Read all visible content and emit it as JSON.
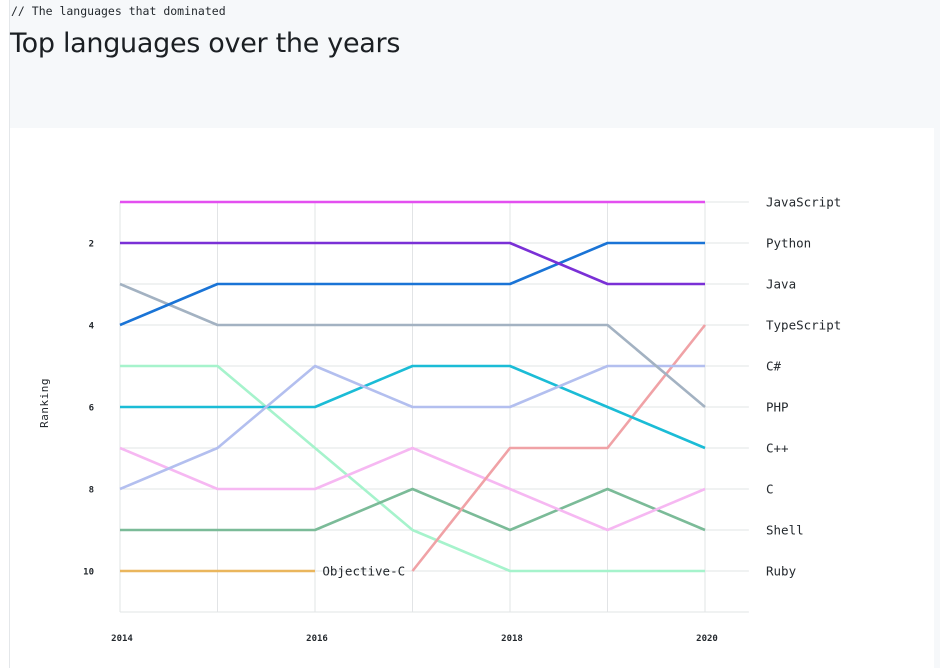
{
  "header": {
    "kicker": "// The languages that dominated",
    "title": "Top languages over the years"
  },
  "chart_data": {
    "type": "line",
    "subtype": "bump",
    "title": "Top languages over the years",
    "ylabel": "Ranking",
    "xlabel": "",
    "x": [
      2014,
      2015,
      2016,
      2017,
      2018,
      2019,
      2020
    ],
    "xlim": [
      2014,
      2020.45
    ],
    "ylim": [
      1,
      11
    ],
    "y_inverted": true,
    "x_tick_labels": [
      "2014",
      "2016",
      "2018",
      "2020"
    ],
    "x_tick_values": [
      2014,
      2016,
      2018,
      2020
    ],
    "y_tick_labels": [
      "2",
      "4",
      "6",
      "8",
      "10"
    ],
    "y_tick_values": [
      2,
      4,
      6,
      8,
      10
    ],
    "grid": true,
    "series": [
      {
        "name": "JavaScript",
        "color": "#e34ff0",
        "x": [
          2014,
          2015,
          2016,
          2017,
          2018,
          2019,
          2020
        ],
        "values": [
          1,
          1,
          1,
          1,
          1,
          1,
          1
        ]
      },
      {
        "name": "Python",
        "color": "#7a30d6",
        "x": [
          2014,
          2015,
          2016,
          2017,
          2018,
          2019,
          2020
        ],
        "values": [
          2,
          2,
          2,
          2,
          2,
          3,
          3
        ]
      },
      {
        "name": "Java",
        "color": "#1a74d6",
        "x": [
          2014,
          2015,
          2016,
          2017,
          2018,
          2019,
          2020
        ],
        "values": [
          4,
          3,
          3,
          3,
          3,
          2,
          2
        ]
      },
      {
        "name": "TypeScript",
        "color": "#a3b2c2",
        "x": [
          2014,
          2015,
          2016,
          2017,
          2018,
          2019,
          2020
        ],
        "values": [
          3,
          4,
          4,
          4,
          4,
          4,
          6
        ]
      },
      {
        "name": "C#",
        "color": "#b3bfef",
        "x": [
          2014,
          2015,
          2016,
          2017,
          2018,
          2019,
          2020
        ],
        "values": [
          8,
          7,
          5,
          6,
          6,
          5,
          5
        ]
      },
      {
        "name": "PHP",
        "color": "#1bbcd6",
        "x": [
          2014,
          2015,
          2016,
          2017,
          2018,
          2019,
          2020
        ],
        "values": [
          6,
          6,
          6,
          5,
          5,
          6,
          7
        ]
      },
      {
        "name": "C++",
        "color": "#f0a2a6",
        "x": [
          2017,
          2018,
          2019,
          2020
        ],
        "values": [
          10,
          7,
          7,
          4
        ]
      },
      {
        "name": "C",
        "color": "#f6b8f2",
        "x": [
          2014,
          2015,
          2016,
          2017,
          2018,
          2019,
          2020
        ],
        "values": [
          7,
          8,
          8,
          7,
          8,
          9,
          8
        ]
      },
      {
        "name": "Shell",
        "color": "#7bbb98",
        "x": [
          2014,
          2015,
          2016,
          2017,
          2018,
          2019,
          2020
        ],
        "values": [
          9,
          9,
          9,
          8,
          9,
          8,
          9
        ]
      },
      {
        "name": "Ruby",
        "color": "#a6f3cc",
        "x": [
          2014,
          2015,
          2016,
          2017,
          2018,
          2019,
          2020
        ],
        "values": [
          5,
          5,
          7,
          9,
          10,
          10,
          10
        ]
      },
      {
        "name": "Objective-C",
        "color": "#eab65d",
        "x": [
          2014,
          2015,
          2016
        ],
        "values": [
          10,
          10,
          10
        ]
      }
    ],
    "right_labels": [
      "JavaScript",
      "Python",
      "Java",
      "TypeScript",
      "C#",
      "PHP",
      "C++",
      "C",
      "Shell",
      "Ruby"
    ],
    "inline_labels": [
      {
        "text": "Objective-C",
        "x": 2016.5,
        "y": 10
      }
    ]
  }
}
